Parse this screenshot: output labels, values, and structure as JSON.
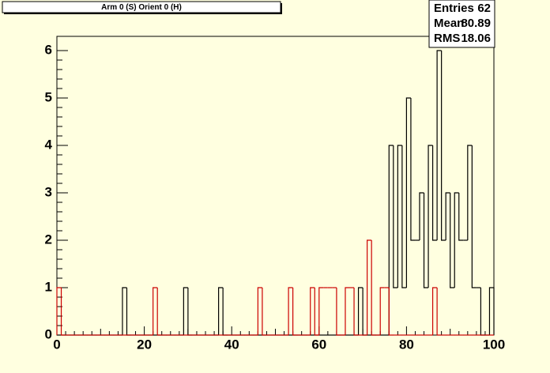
{
  "chart_data": {
    "type": "histogram",
    "title": "Arm 0 (S) Orient 0 (H)",
    "bins": [
      0,
      1,
      2,
      3,
      4,
      5,
      6,
      7,
      8,
      9,
      10,
      11,
      12,
      13,
      14,
      15,
      16,
      17,
      18,
      19,
      20,
      21,
      22,
      23,
      24,
      25,
      26,
      27,
      28,
      29,
      30,
      31,
      32,
      33,
      34,
      35,
      36,
      37,
      38,
      39,
      40,
      41,
      42,
      43,
      44,
      45,
      46,
      47,
      48,
      49,
      50,
      51,
      52,
      53,
      54,
      55,
      56,
      57,
      58,
      59,
      60,
      61,
      62,
      63,
      64,
      65,
      66,
      67,
      68,
      69,
      70,
      71,
      72,
      73,
      74,
      75,
      76,
      77,
      78,
      79,
      80,
      81,
      82,
      83,
      84,
      85,
      86,
      87,
      88,
      89,
      90,
      91,
      92,
      93,
      94,
      95,
      96,
      97,
      98,
      99,
      100
    ],
    "series": [
      {
        "color": "#000000",
        "values": [
          0,
          0,
          0,
          0,
          0,
          0,
          0,
          0,
          0,
          0,
          0,
          0,
          0,
          0,
          0,
          1,
          0,
          0,
          0,
          0,
          0,
          0,
          0,
          0,
          0,
          0,
          0,
          0,
          0,
          1,
          0,
          0,
          0,
          0,
          0,
          0,
          0,
          1,
          0,
          0,
          0,
          0,
          0,
          0,
          0,
          0,
          0,
          0,
          0,
          0,
          0,
          0,
          0,
          0,
          0,
          0,
          0,
          0,
          0,
          0,
          0,
          0,
          0,
          0,
          0,
          0,
          0,
          0,
          0,
          1,
          0,
          0,
          0,
          0,
          0,
          0,
          4,
          1,
          4,
          1,
          5,
          2,
          2,
          3,
          1,
          4,
          2,
          6,
          2,
          3,
          1,
          3,
          2,
          2,
          4,
          1,
          1,
          0,
          0,
          1
        ]
      },
      {
        "color": "#cc0000",
        "values": [
          1,
          0,
          0,
          0,
          0,
          0,
          0,
          0,
          0,
          0,
          0,
          0,
          0,
          0,
          0,
          0,
          0,
          0,
          0,
          0,
          0,
          0,
          1,
          0,
          0,
          0,
          0,
          0,
          0,
          0,
          0,
          0,
          0,
          0,
          0,
          0,
          0,
          0,
          0,
          0,
          0,
          0,
          0,
          0,
          0,
          0,
          1,
          0,
          0,
          0,
          0,
          0,
          0,
          1,
          0,
          0,
          0,
          0,
          1,
          0,
          1,
          1,
          1,
          1,
          0,
          0,
          1,
          1,
          0,
          0,
          0,
          2,
          0,
          0,
          1,
          1,
          0,
          0,
          0,
          0,
          0,
          0,
          0,
          0,
          0,
          0,
          1,
          0,
          0,
          0,
          0,
          0,
          0,
          0,
          0,
          0,
          0,
          0,
          0,
          0
        ]
      }
    ],
    "xlim": [
      0,
      100
    ],
    "ylim": [
      0,
      6.3
    ],
    "xticks": [
      0,
      20,
      40,
      60,
      80,
      100
    ],
    "yticks": [
      0,
      1,
      2,
      3,
      4,
      5,
      6
    ],
    "stats": [
      {
        "label": "Entries",
        "value": 62
      },
      {
        "label": "Mean",
        "value": 80.89
      },
      {
        "label": "RMS",
        "value": 18.06
      }
    ]
  }
}
